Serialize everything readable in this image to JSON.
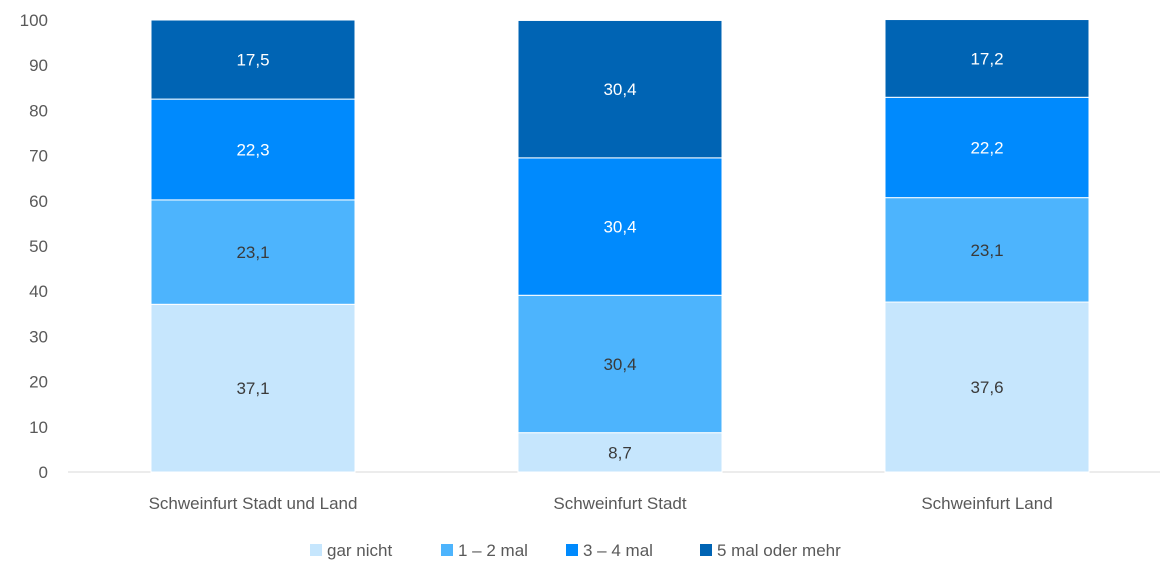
{
  "chart_data": {
    "type": "bar",
    "stacked": true,
    "title": "",
    "xlabel": "",
    "ylabel": "",
    "ylim": [
      0,
      100
    ],
    "yticks": [
      0,
      10,
      20,
      30,
      40,
      50,
      60,
      70,
      80,
      90,
      100
    ],
    "grid": false,
    "legend_position": "bottom",
    "categories": [
      "Schweinfurt Stadt und Land",
      "Schweinfurt Stadt",
      "Schweinfurt Land"
    ],
    "series": [
      {
        "name": "gar nicht",
        "color": "#c6e6fd",
        "label_color": "#3a3a3a",
        "values": [
          37.1,
          8.7,
          37.6
        ],
        "labels": [
          "37,1",
          "8,7",
          "37,6"
        ]
      },
      {
        "name": "1 – 2 mal",
        "color": "#4db4fd",
        "label_color": "#3a3a3a",
        "values": [
          23.1,
          30.4,
          23.1
        ],
        "labels": [
          "23,1",
          "30,4",
          "23,1"
        ]
      },
      {
        "name": "3 – 4 mal",
        "color": "#008afd",
        "label_color": "#ffffff",
        "values": [
          22.3,
          30.4,
          22.2
        ],
        "labels": [
          "22,3",
          "30,4",
          "22,2"
        ]
      },
      {
        "name": "5 mal oder mehr",
        "color": "#0064b4",
        "label_color": "#ffffff",
        "values": [
          17.5,
          30.4,
          17.2
        ],
        "labels": [
          "17,5",
          "30,4",
          "17,2"
        ]
      }
    ]
  }
}
